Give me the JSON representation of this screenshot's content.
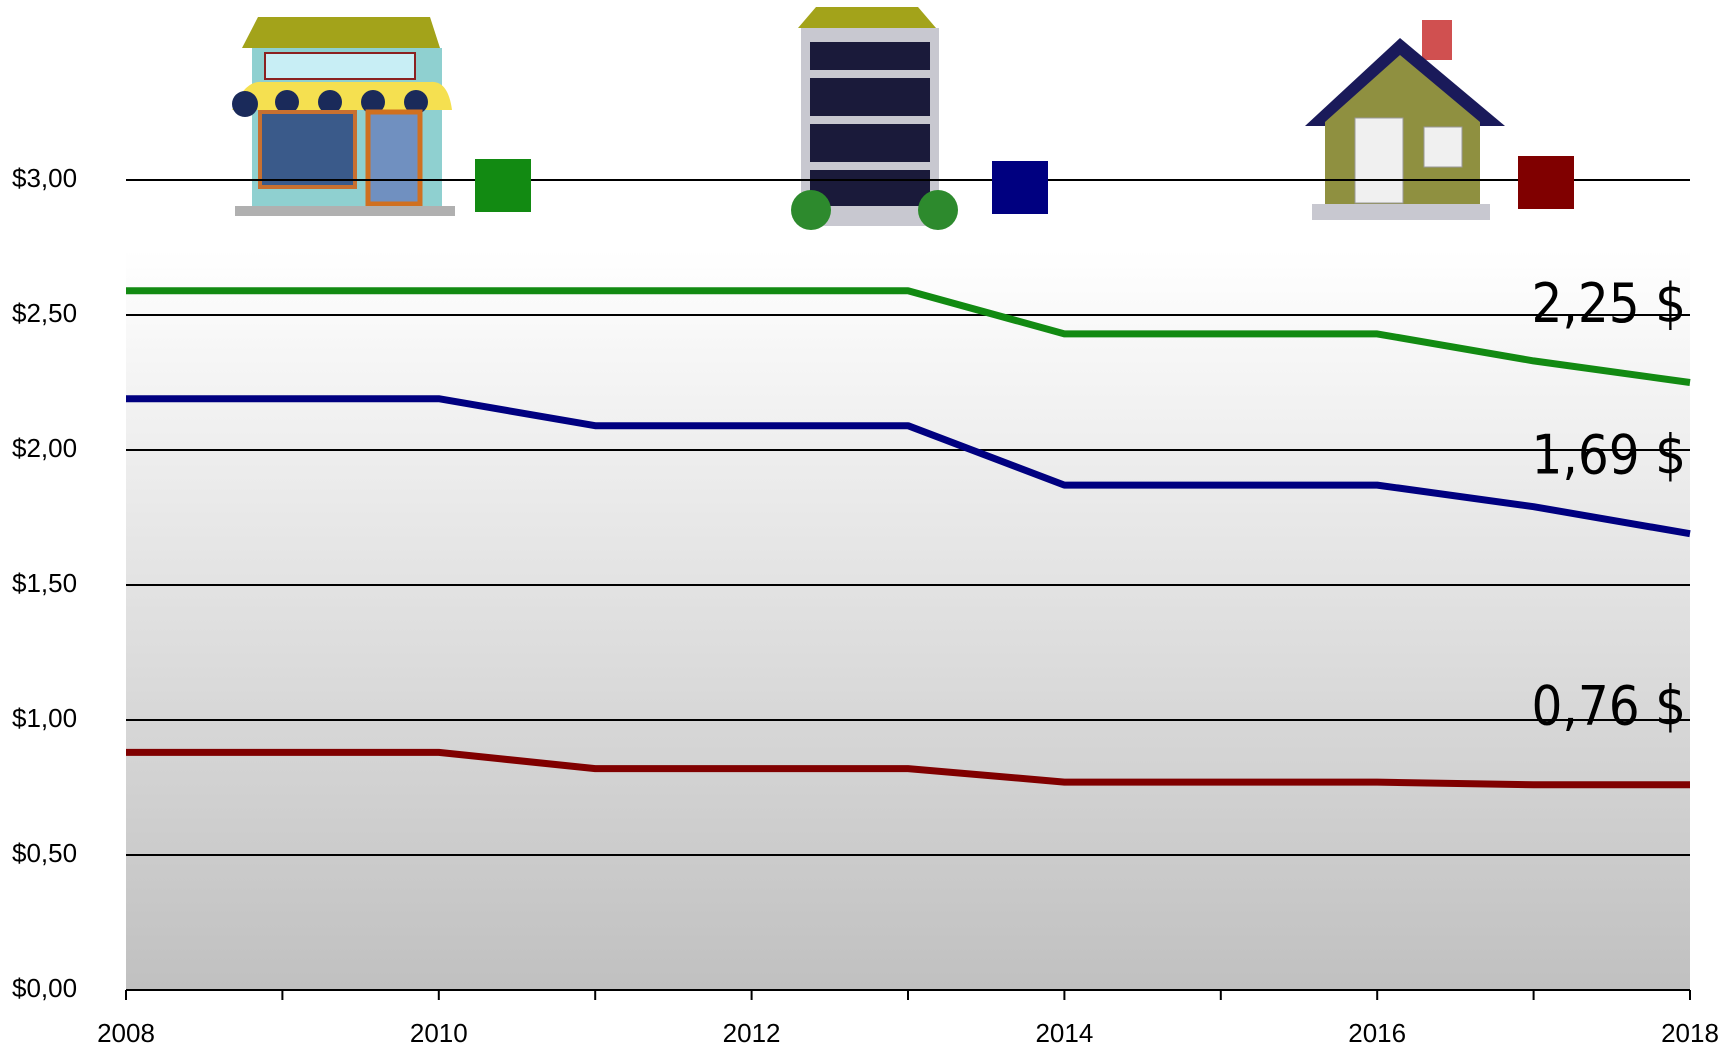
{
  "chart_data": {
    "type": "line",
    "x": [
      2008,
      2010,
      2011,
      2013,
      2014,
      2016,
      2017,
      2018
    ],
    "series": [
      {
        "color": "#128a12",
        "values": [
          2.59,
          2.59,
          2.59,
          2.59,
          2.43,
          2.43,
          2.33,
          2.25
        ],
        "value_labels": [
          null,
          null,
          null,
          null,
          null,
          null,
          null,
          "2,25 $"
        ]
      },
      {
        "color": "#000080",
        "values": [
          2.19,
          2.19,
          2.09,
          2.09,
          1.87,
          1.87,
          1.79,
          1.69
        ],
        "value_labels": [
          null,
          null,
          null,
          null,
          null,
          null,
          null,
          "1,69 $"
        ]
      },
      {
        "color": "#800000",
        "values": [
          0.88,
          0.88,
          0.82,
          0.82,
          0.77,
          0.77,
          0.76,
          0.76
        ],
        "value_labels": [
          null,
          null,
          null,
          null,
          null,
          null,
          null,
          "0,76 $"
        ]
      }
    ],
    "xlim": [
      2008,
      2018
    ],
    "xticks": [
      2008,
      2010,
      2012,
      2014,
      2016,
      2018
    ],
    "xminorticks": [
      2009,
      2011,
      2013,
      2015,
      2017
    ],
    "ylim": [
      0,
      3
    ],
    "yticks": [
      {
        "value": 0,
        "label": "$0,00"
      },
      {
        "value": 0.5,
        "label": "$0,50"
      },
      {
        "value": 1,
        "label": "$1,00"
      },
      {
        "value": 1.5,
        "label": "$1,50"
      },
      {
        "value": 2,
        "label": "$2,00"
      },
      {
        "value": 2.5,
        "label": "$2,50"
      },
      {
        "value": 3,
        "label": "$3,00"
      }
    ],
    "grid": true
  }
}
